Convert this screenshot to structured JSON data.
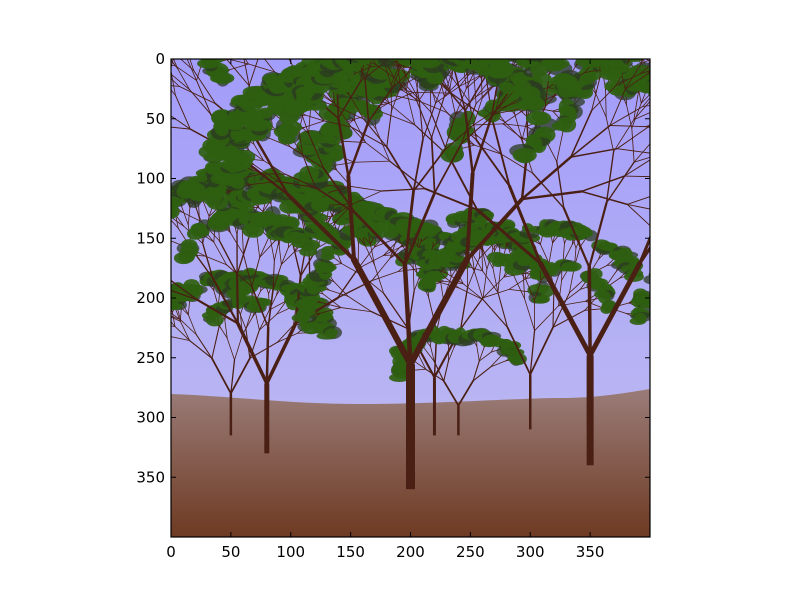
{
  "figure": {
    "kind": "image-plot",
    "description_elements": [
      "sky",
      "ground",
      "trees"
    ],
    "colors": {
      "sky_top": "#a29cfa",
      "sky_bottom": "#c2bff0",
      "ground_top": "#9a7c78",
      "ground_bottom": "#6e3a22",
      "trunk": "#4a1f14",
      "foliage": "#2f6010",
      "foliage_dark": "#2b3a22",
      "axes_edge": "#000000"
    }
  },
  "chart_data": {
    "type": "heatmap",
    "xlim": [
      0,
      400
    ],
    "ylim": [
      400,
      0
    ],
    "x_ticks": [
      0,
      50,
      100,
      150,
      200,
      250,
      300,
      350
    ],
    "y_ticks": [
      0,
      50,
      100,
      150,
      200,
      250,
      300,
      350
    ],
    "x_tick_labels": [
      "0",
      "50",
      "100",
      "150",
      "200",
      "250",
      "300",
      "350"
    ],
    "y_tick_labels": [
      "0",
      "50",
      "100",
      "150",
      "200",
      "250",
      "300",
      "350"
    ],
    "title": "",
    "xlabel": "",
    "ylabel": "",
    "grid": false
  }
}
